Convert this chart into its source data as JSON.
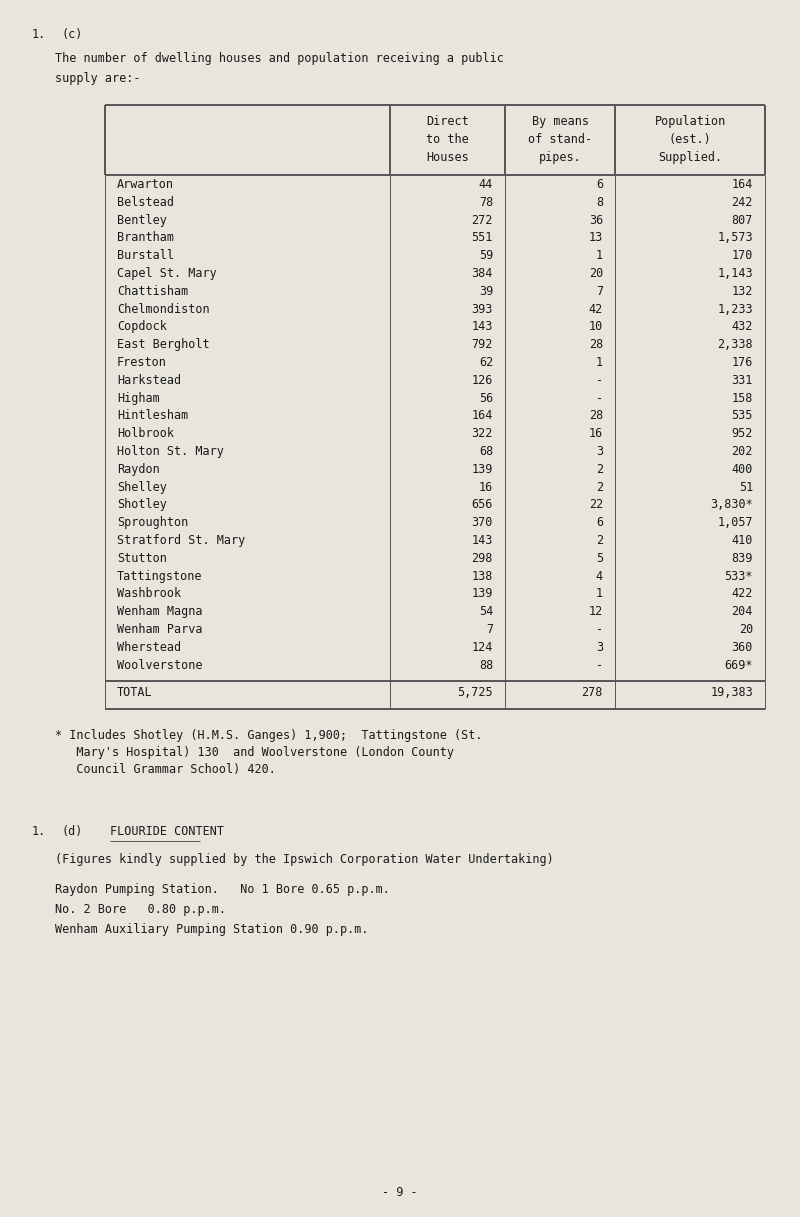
{
  "bg_color": "#e8e5dc",
  "text_color": "#1a1a1a",
  "section_label": "1.   (c)",
  "intro_line1": "The number of dwelling houses and population receiving a public",
  "intro_line2": "supply are:-",
  "col_headers": [
    "",
    "Direct\nto the\nHouses",
    "By means\nof stand-\npipes.",
    "Population\n(est.)\nSupplied."
  ],
  "rows": [
    [
      "Arwarton",
      "44",
      "6",
      "164"
    ],
    [
      "Belstead",
      "78",
      "8",
      "242"
    ],
    [
      "Bentley",
      "272",
      "36",
      "807"
    ],
    [
      "Brantham",
      "551",
      "13",
      "1,573"
    ],
    [
      "Burstall",
      "59",
      "1",
      "170"
    ],
    [
      "Capel St. Mary",
      "384",
      "20",
      "1,143"
    ],
    [
      "Chattisham",
      "39",
      "7",
      "132"
    ],
    [
      "Chelmondiston",
      "393",
      "42",
      "1,233"
    ],
    [
      "Copdock",
      "143",
      "10",
      "432"
    ],
    [
      "East Bergholt",
      "792",
      "28",
      "2,338"
    ],
    [
      "Freston",
      "62",
      "1",
      "176"
    ],
    [
      "Harkstead",
      "126",
      "-",
      "331"
    ],
    [
      "Higham",
      "56",
      "-",
      "158"
    ],
    [
      "Hintlesham",
      "164",
      "28",
      "535"
    ],
    [
      "Holbrook",
      "322",
      "16",
      "952"
    ],
    [
      "Holton St. Mary",
      "68",
      "3",
      "202"
    ],
    [
      "Raydon",
      "139",
      "2",
      "400"
    ],
    [
      "Shelley",
      "16",
      "2",
      "51"
    ],
    [
      "Shotley",
      "656",
      "22",
      "3,830*"
    ],
    [
      "Sproughton",
      "370",
      "6",
      "1,057"
    ],
    [
      "Stratford St. Mary",
      "143",
      "2",
      "410"
    ],
    [
      "Stutton",
      "298",
      "5",
      "839"
    ],
    [
      "Tattingstone",
      "138",
      "4",
      "533*"
    ],
    [
      "Washbrook",
      "139",
      "1",
      "422"
    ],
    [
      "Wenham Magna",
      "54",
      "12",
      "204"
    ],
    [
      "Wenham Parva",
      "7",
      "-",
      "20"
    ],
    [
      "Wherstead",
      "124",
      "3",
      "360"
    ],
    [
      "Woolverstone",
      "88",
      "-",
      "669*"
    ]
  ],
  "total_row": [
    "TOTAL",
    "5,725",
    "278",
    "19,383"
  ],
  "footnote_lines": [
    "* Includes Shotley (H.M.S. Ganges) 1,900;  Tattingstone (St.",
    "   Mary's Hospital) 130  and Woolverstone (London County",
    "   Council Grammar School) 420."
  ],
  "section2_label": "1.",
  "section2_sub_label": "(d)",
  "section2_title": "FLOURIDE CONTENT",
  "section2_intro": "(Figures kindly supplied by the Ipswich Corporation Water Undertaking)",
  "section2_lines": [
    "Raydon Pumping Station.   No 1 Bore 0.65 p.p.m.",
    "No. 2 Bore   0.80 p.p.m.",
    "Wenham Auxiliary Pumping Station 0.90 p.p.m."
  ],
  "page_number": "- 9 -",
  "font_size": 8.5,
  "line_color": "#555555"
}
